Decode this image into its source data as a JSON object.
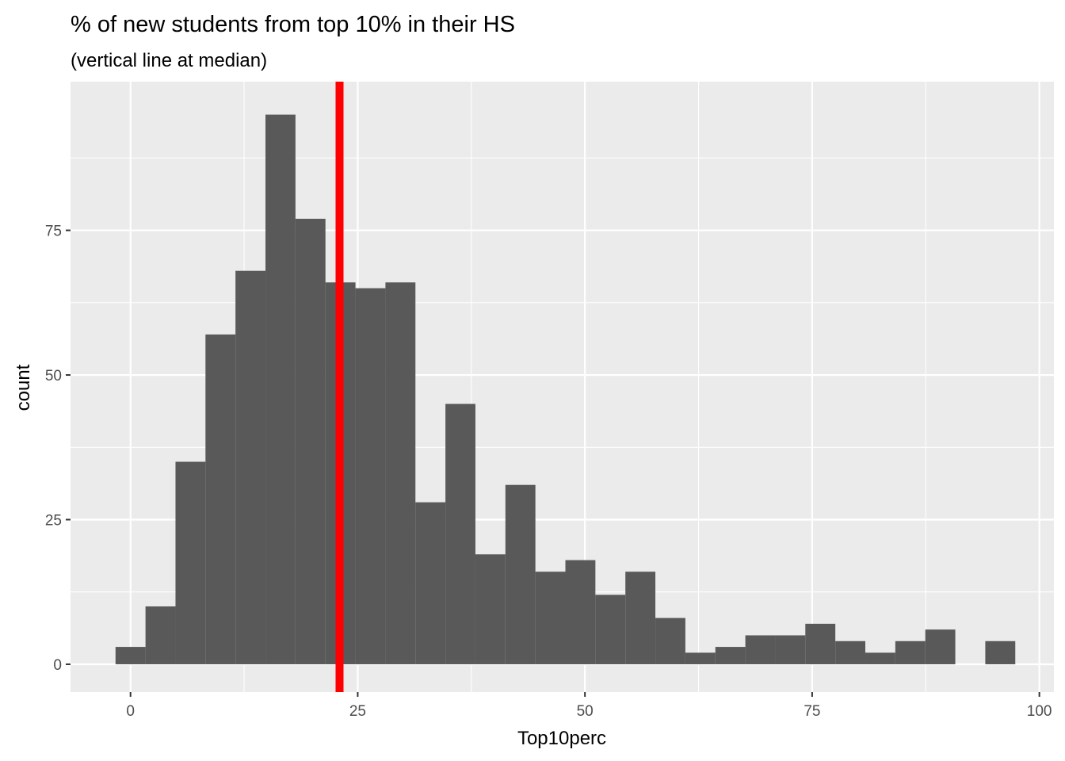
{
  "chart_data": {
    "type": "bar",
    "title": "% of new students from top 10% in their HS",
    "subtitle": "(vertical line at median)",
    "xlabel": "Top10perc",
    "ylabel": "count",
    "xlim": [
      -6.6,
      101.6
    ],
    "ylim": [
      -4.8,
      100.7
    ],
    "x_ticks": [
      0,
      25,
      50,
      75,
      100
    ],
    "y_ticks": [
      0,
      25,
      50,
      75
    ],
    "grid": true,
    "bin_width": 3.3,
    "bins": [
      {
        "start": -1.65,
        "end": 1.65,
        "count": 3
      },
      {
        "start": 1.65,
        "end": 4.95,
        "count": 10
      },
      {
        "start": 4.95,
        "end": 8.25,
        "count": 35
      },
      {
        "start": 8.25,
        "end": 11.55,
        "count": 57
      },
      {
        "start": 11.55,
        "end": 14.85,
        "count": 68
      },
      {
        "start": 14.85,
        "end": 18.15,
        "count": 95
      },
      {
        "start": 18.15,
        "end": 21.45,
        "count": 77
      },
      {
        "start": 21.45,
        "end": 24.75,
        "count": 66
      },
      {
        "start": 24.75,
        "end": 28.05,
        "count": 65
      },
      {
        "start": 28.05,
        "end": 31.35,
        "count": 66
      },
      {
        "start": 31.35,
        "end": 34.65,
        "count": 28
      },
      {
        "start": 34.65,
        "end": 37.95,
        "count": 45
      },
      {
        "start": 37.95,
        "end": 41.25,
        "count": 19
      },
      {
        "start": 41.25,
        "end": 44.55,
        "count": 31
      },
      {
        "start": 44.55,
        "end": 47.85,
        "count": 16
      },
      {
        "start": 47.85,
        "end": 51.15,
        "count": 18
      },
      {
        "start": 51.15,
        "end": 54.45,
        "count": 12
      },
      {
        "start": 54.45,
        "end": 57.75,
        "count": 16
      },
      {
        "start": 57.75,
        "end": 61.05,
        "count": 8
      },
      {
        "start": 61.05,
        "end": 64.35,
        "count": 2
      },
      {
        "start": 64.35,
        "end": 67.65,
        "count": 3
      },
      {
        "start": 67.65,
        "end": 70.95,
        "count": 5
      },
      {
        "start": 70.95,
        "end": 74.25,
        "count": 5
      },
      {
        "start": 74.25,
        "end": 77.55,
        "count": 7
      },
      {
        "start": 77.55,
        "end": 80.85,
        "count": 4
      },
      {
        "start": 80.85,
        "end": 84.15,
        "count": 2
      },
      {
        "start": 84.15,
        "end": 87.45,
        "count": 4
      },
      {
        "start": 87.45,
        "end": 90.75,
        "count": 6
      },
      {
        "start": 90.75,
        "end": 94.05,
        "count": 0
      },
      {
        "start": 94.05,
        "end": 97.35,
        "count": 4
      }
    ],
    "median": 23,
    "colors": {
      "panel_background": "#ebebeb",
      "grid": "#ffffff",
      "bar_fill": "#595959",
      "median_line": "#ff0000",
      "tick_text": "#4d4d4d",
      "tick_mark": "#333333"
    }
  }
}
